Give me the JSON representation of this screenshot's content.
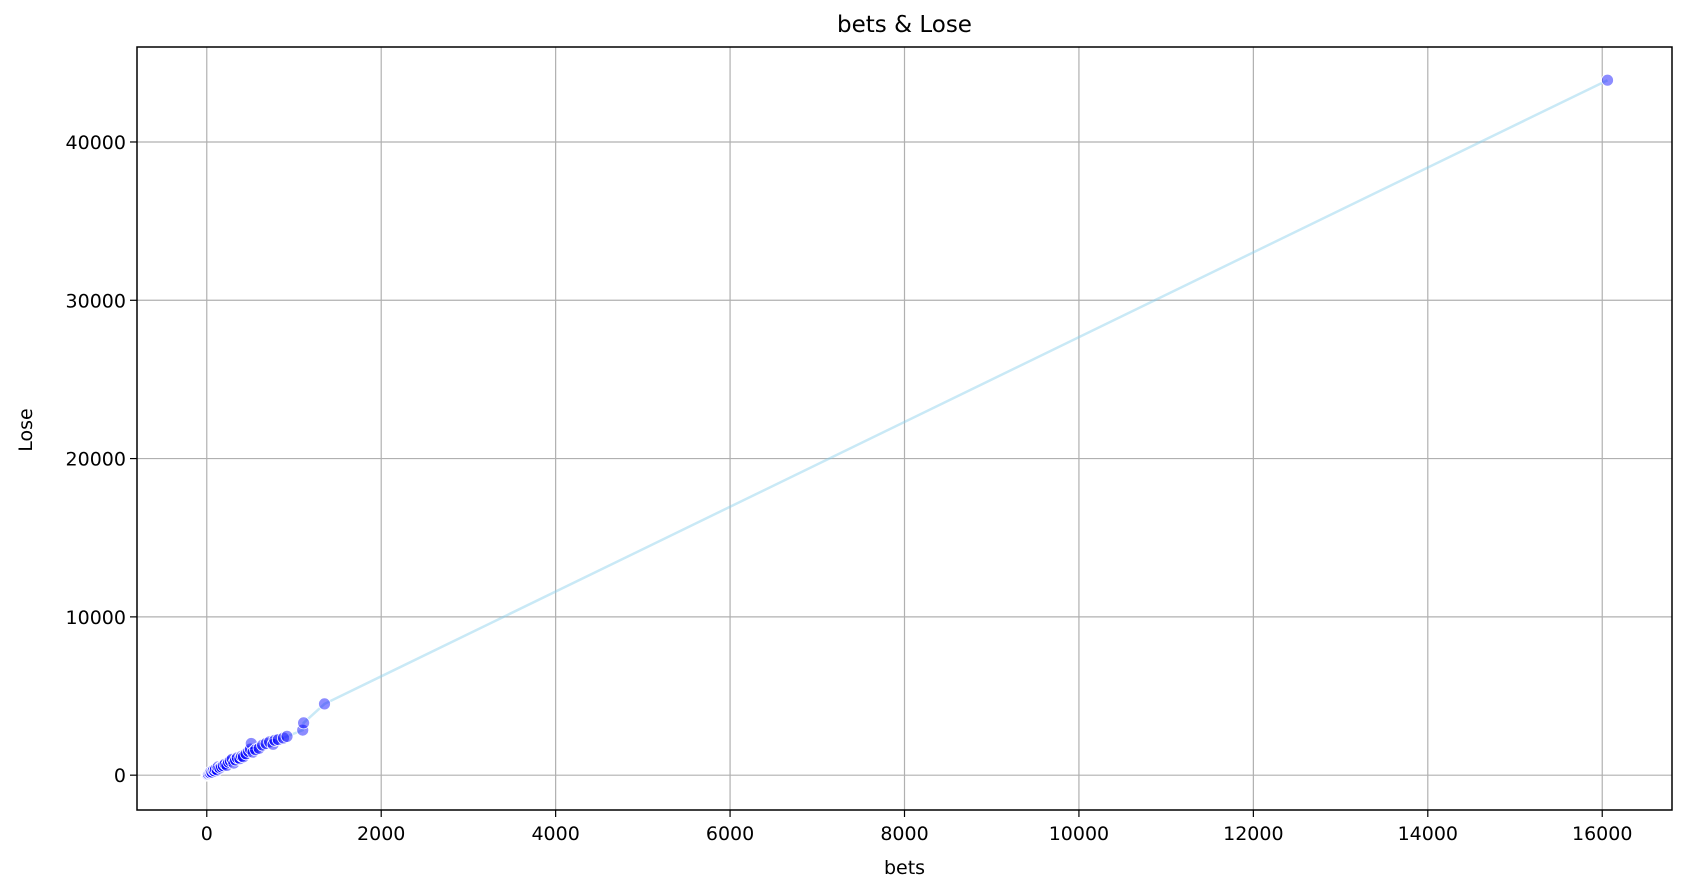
{
  "chart_data": {
    "type": "scatter",
    "title": "bets & Lose",
    "xlabel": "bets",
    "ylabel": "Lose",
    "xlim": [
      -800,
      16800
    ],
    "ylim": [
      -2200,
      46000
    ],
    "xticks": [
      0,
      2000,
      4000,
      6000,
      8000,
      10000,
      12000,
      14000,
      16000
    ],
    "yticks": [
      0,
      10000,
      20000,
      30000,
      40000
    ],
    "grid": true,
    "colors": {
      "points": "#0000ff",
      "line": "#87ceeb",
      "grid": "#b0b0b0",
      "axes": "#000000"
    },
    "series": [
      {
        "points": [
          [
            0,
            0
          ],
          [
            5,
            20
          ],
          [
            10,
            40
          ],
          [
            15,
            90
          ],
          [
            20,
            60
          ],
          [
            30,
            120
          ],
          [
            40,
            150
          ],
          [
            50,
            230
          ],
          [
            60,
            180
          ],
          [
            75,
            300
          ],
          [
            90,
            260
          ],
          [
            100,
            380
          ],
          [
            120,
            330
          ],
          [
            130,
            520
          ],
          [
            150,
            450
          ],
          [
            170,
            520
          ],
          [
            190,
            600
          ],
          [
            210,
            700
          ],
          [
            230,
            620
          ],
          [
            250,
            820
          ],
          [
            270,
            900
          ],
          [
            290,
            1000
          ],
          [
            310,
            760
          ],
          [
            330,
            960
          ],
          [
            350,
            1100
          ],
          [
            380,
            1040
          ],
          [
            400,
            1200
          ],
          [
            420,
            1160
          ],
          [
            450,
            1350
          ],
          [
            480,
            1500
          ],
          [
            500,
            1650
          ],
          [
            510,
            2000
          ],
          [
            530,
            1450
          ],
          [
            560,
            1600
          ],
          [
            600,
            1700
          ],
          [
            640,
            1900
          ],
          [
            680,
            2000
          ],
          [
            720,
            2100
          ],
          [
            760,
            1950
          ],
          [
            780,
            2200
          ],
          [
            820,
            2250
          ],
          [
            880,
            2350
          ],
          [
            920,
            2450
          ],
          [
            1100,
            2850
          ],
          [
            1110,
            3300
          ],
          [
            1350,
            4500
          ],
          [
            16060,
            43900
          ]
        ]
      }
    ]
  }
}
